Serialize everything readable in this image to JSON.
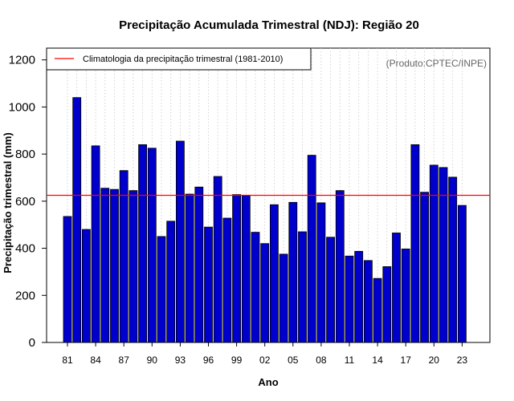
{
  "chart_data": {
    "type": "bar",
    "title": "Precipitação Acumulada Trimestral (NDJ): Região 20",
    "xlabel": "Ano",
    "ylabel": "Precipitação trimestral (mm)",
    "source_note": "(Produto:CPTEC/INPE)",
    "ylim": [
      0,
      1250
    ],
    "yticks": [
      0,
      200,
      400,
      600,
      800,
      1000,
      1200
    ],
    "grid": "vertical dotted",
    "legend_position": "top-left",
    "years": [
      1981,
      1982,
      1983,
      1984,
      1985,
      1986,
      1987,
      1988,
      1989,
      1990,
      1991,
      1992,
      1993,
      1994,
      1995,
      1996,
      1997,
      1998,
      1999,
      2000,
      2001,
      2002,
      2003,
      2004,
      2005,
      2006,
      2007,
      2008,
      2009,
      2010,
      2011,
      2012,
      2013,
      2014,
      2015,
      2016,
      2017,
      2018,
      2019,
      2020,
      2021,
      2022,
      2023
    ],
    "xtick_labels": [
      "81",
      "84",
      "87",
      "90",
      "93",
      "96",
      "99",
      "02",
      "05",
      "08",
      "11",
      "14",
      "17",
      "20",
      "23"
    ],
    "xtick_every": 3,
    "values": [
      535,
      1040,
      480,
      835,
      655,
      650,
      730,
      645,
      840,
      825,
      450,
      515,
      855,
      630,
      660,
      490,
      705,
      528,
      628,
      625,
      468,
      420,
      585,
      375,
      595,
      470,
      795,
      593,
      447,
      645,
      367,
      387,
      348,
      272,
      322,
      465,
      397,
      840,
      638,
      753,
      743,
      702,
      582
    ],
    "bar_color": "#0000CD",
    "reference_line": {
      "label": "Climatologia da precipitação trimestral (1981-2010)",
      "value": 625,
      "color": "#FF0000"
    }
  }
}
